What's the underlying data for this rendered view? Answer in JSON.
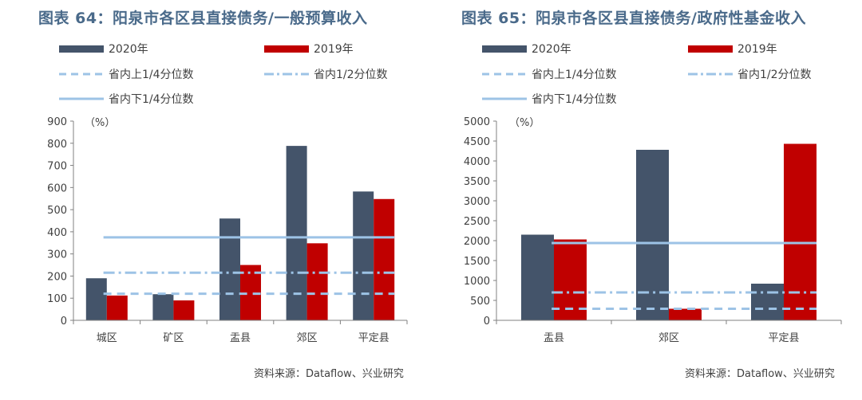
{
  "charts": [
    {
      "title": "图表 64：阳泉市各区县直接债务/一般预算收入",
      "unit_label": "（%）",
      "source": "资料来源：Dataflow、兴业研究",
      "legend": {
        "s2020": "2020年",
        "s2019": "2019年",
        "upper": "省内上1/4分位数",
        "median": "省内1/2分位数",
        "lower": "省内下1/4分位数"
      },
      "colors": {
        "s2020": "#44546a",
        "s2019": "#c00000",
        "ref": "#9dc3e6"
      },
      "chart_data": {
        "type": "bar",
        "categories": [
          "城区",
          "矿区",
          "盂县",
          "郊区",
          "平定县"
        ],
        "series": [
          {
            "name": "2020年",
            "values": [
              190,
              118,
              460,
              788,
              582
            ]
          },
          {
            "name": "2019年",
            "values": [
              112,
              90,
              250,
              348,
              548
            ]
          }
        ],
        "reference_lines": [
          {
            "name": "省内上1/4分位数",
            "value": 120,
            "style": "dashed"
          },
          {
            "name": "省内1/2分位数",
            "value": 215,
            "style": "dash-dot"
          },
          {
            "name": "省内下1/4分位数",
            "value": 375,
            "style": "solid"
          }
        ],
        "ylim": [
          0,
          900
        ],
        "yticks": [
          0,
          100,
          200,
          300,
          400,
          500,
          600,
          700,
          800,
          900
        ],
        "ylabel": "（%）",
        "grid": false,
        "legend_position": "top"
      }
    },
    {
      "title": "图表 65：阳泉市各区县直接债务/政府性基金收入",
      "unit_label": "（%）",
      "source": "资料来源：Dataflow、兴业研究",
      "legend": {
        "s2020": "2020年",
        "s2019": "2019年",
        "upper": "省内上1/4分位数",
        "median": "省内1/2分位数",
        "lower": "省内下1/4分位数"
      },
      "colors": {
        "s2020": "#44546a",
        "s2019": "#c00000",
        "ref": "#9dc3e6"
      },
      "chart_data": {
        "type": "bar",
        "categories": [
          "盂县",
          "郊区",
          "平定县"
        ],
        "series": [
          {
            "name": "2020年",
            "values": [
              2150,
              4280,
              920
            ]
          },
          {
            "name": "2019年",
            "values": [
              2030,
              290,
              4430
            ]
          }
        ],
        "reference_lines": [
          {
            "name": "省内上1/4分位数",
            "value": 290,
            "style": "dashed"
          },
          {
            "name": "省内1/2分位数",
            "value": 700,
            "style": "dash-dot"
          },
          {
            "name": "省内下1/4分位数",
            "value": 1940,
            "style": "solid"
          }
        ],
        "ylim": [
          0,
          5000
        ],
        "yticks": [
          0,
          500,
          1000,
          1500,
          2000,
          2500,
          3000,
          3500,
          4000,
          4500,
          5000
        ],
        "ylabel": "（%）",
        "grid": false,
        "legend_position": "top"
      }
    }
  ]
}
